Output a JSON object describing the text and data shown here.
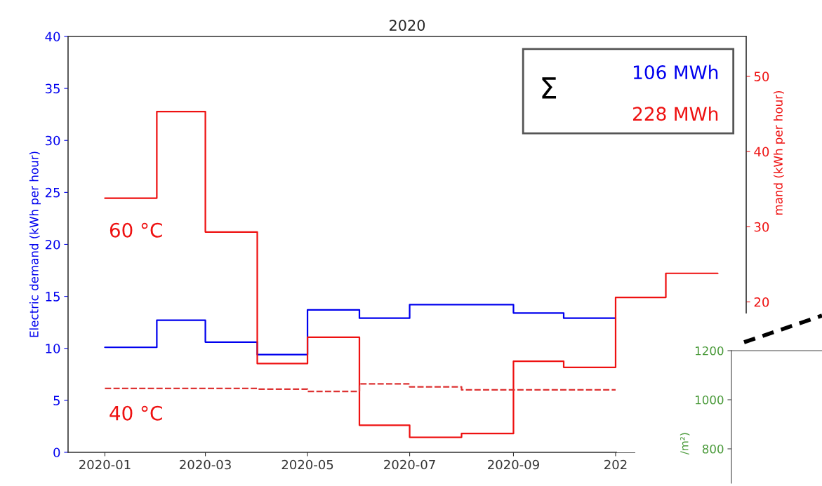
{
  "chart_data": [
    {
      "type": "step",
      "title": "2020",
      "ylabel": "Electric demand (kWh per hour)",
      "y2label": "mand (kWh per hour)",
      "x": [
        "2020-01",
        "2020-02",
        "2020-03",
        "2020-04",
        "2020-05",
        "2020-06",
        "2020-07",
        "2020-08",
        "2020-09",
        "2020-10",
        "2020-11",
        "2020-12",
        "2021-01"
      ],
      "series": [
        {
          "color": "#0000ee",
          "x": [
            "2020-01",
            "2020-02",
            "2020-03",
            "2020-04",
            "2020-05",
            "2020-06",
            "2020-07",
            "2020-08",
            "2020-09",
            "2020-10",
            "2020-11"
          ],
          "values": [
            10.1,
            12.7,
            10.6,
            9.4,
            13.7,
            12.9,
            14.2,
            14.2,
            13.4,
            12.9,
            12.9
          ]
        },
        {
          "color": "#ee1111",
          "axis": "y2",
          "values": [
            33.8,
            45.3,
            29.3,
            11.8,
            15.3,
            3.6,
            2.0,
            2.5,
            12.1,
            11.3,
            20.6,
            23.8,
            23.8
          ]
        },
        {
          "color": "#dd3333",
          "axis": "y2",
          "line_style": "dashed",
          "x": [
            "2020-01",
            "2020-02",
            "2020-03",
            "2020-04",
            "2020-05",
            "2020-06",
            "2020-07",
            "2020-08",
            "2020-09",
            "2020-10",
            "2020-11"
          ],
          "values": [
            8.5,
            8.5,
            8.5,
            8.4,
            8.1,
            9.1,
            8.7,
            8.3,
            8.3,
            8.3,
            8.3
          ]
        }
      ],
      "xlim": [
        "2019-12-10",
        "2021-01-18"
      ],
      "xticks": [
        {
          "value": "2020-01",
          "label": "2020-01"
        },
        {
          "value": "2020-03",
          "label": "2020-03"
        },
        {
          "value": "2020-05",
          "label": "2020-05"
        },
        {
          "value": "2020-07",
          "label": "2020-07"
        },
        {
          "value": "2020-09",
          "label": "2020-09"
        },
        {
          "value": "2020-11",
          "label": "202"
        }
      ],
      "ylim": [
        0,
        40
      ],
      "yticks": [
        0,
        5,
        10,
        15,
        20,
        25,
        30,
        35,
        40
      ],
      "y2lim": [
        0,
        55.3
      ],
      "y2ticks": [
        20,
        30,
        40,
        50
      ],
      "annotations": [
        "60 °C",
        "40 °C",
        "Σ",
        "106 MWh",
        "228 MWh"
      ]
    },
    {
      "type": "line",
      "ylabel": "/m²)",
      "ylim": [
        660,
        1200
      ],
      "yticks": [
        800,
        1000,
        1200
      ],
      "tick_labels": "y",
      "categories": [
        null,
        null
      ]
    }
  ]
}
